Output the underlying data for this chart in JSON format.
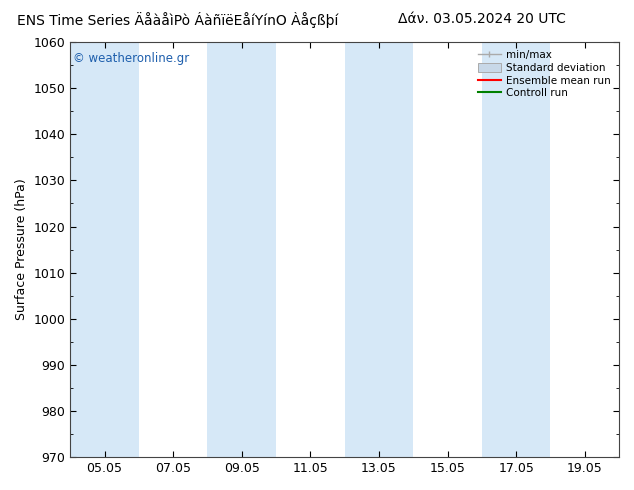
{
  "title_left": "ENS Time Series ÄåàåìPò ÁàñïëEåíYínO Àåçßþí",
  "title_right": "Δάν. 03.05.2024 20 UTC",
  "ylabel": "Surface Pressure (hPa)",
  "ylim": [
    970,
    1060
  ],
  "yticks": [
    970,
    980,
    990,
    1000,
    1010,
    1020,
    1030,
    1040,
    1050,
    1060
  ],
  "xtick_labels": [
    "05.05",
    "07.05",
    "09.05",
    "11.05",
    "13.05",
    "15.05",
    "17.05",
    "19.05"
  ],
  "xmin": 0,
  "xmax": 14,
  "shaded_bands": [
    {
      "x_start": 0.0,
      "x_end": 1.0
    },
    {
      "x_start": 2.0,
      "x_end": 3.0
    },
    {
      "x_start": 4.0,
      "x_end": 5.0
    },
    {
      "x_start": 6.0,
      "x_end": 7.0
    },
    {
      "x_start": 8.0,
      "x_end": 9.0
    },
    {
      "x_start": 10.0,
      "x_end": 11.0
    },
    {
      "x_start": 12.0,
      "x_end": 13.0
    },
    {
      "x_start": 14.0,
      "x_end": 14.0
    }
  ],
  "band_color": "#d6e8f7",
  "watermark_text": "© weatheronline.gr",
  "watermark_color": "#1e5fad",
  "legend_entries": [
    {
      "label": "min/max",
      "color": "#999999",
      "type": "errorbar"
    },
    {
      "label": "Standard deviation",
      "color": "#c8d8e8",
      "type": "rect"
    },
    {
      "label": "Ensemble mean run",
      "color": "#ff0000",
      "type": "line"
    },
    {
      "label": "Controll run",
      "color": "#008000",
      "type": "line"
    }
  ],
  "background_color": "#ffffff",
  "title_fontsize": 10,
  "axis_fontsize": 9,
  "tick_fontsize": 9,
  "fig_width": 6.34,
  "fig_height": 4.9,
  "dpi": 100
}
